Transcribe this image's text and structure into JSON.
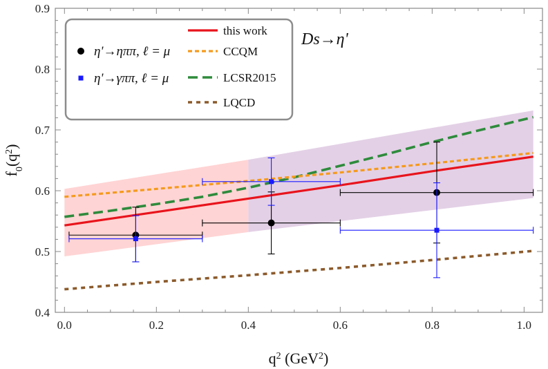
{
  "chart_data": {
    "type": "line",
    "title": "",
    "xlabel": "q",
    "xlabel_sup": "2",
    "xlabel_unit_open": " (GeV",
    "xlabel_unit_sup": "2",
    "xlabel_unit_close": ")",
    "ylabel": "f",
    "ylabel_sub": "0",
    "ylabel_arg_open": "(q",
    "ylabel_arg_sup": "2",
    "ylabel_arg_close": ")",
    "xlim": [
      -0.02,
      1.04
    ],
    "ylim": [
      0.4,
      0.9
    ],
    "xticks": [
      0.0,
      0.2,
      0.4,
      0.6,
      0.8,
      1.0
    ],
    "xtick_labels": [
      "0.0",
      "0.2",
      "0.4",
      "0.6",
      "0.8",
      "1.0"
    ],
    "yticks": [
      0.4,
      0.5,
      0.6,
      0.7,
      0.8,
      0.9
    ],
    "ytick_labels": [
      "0.4",
      "0.5",
      "0.6",
      "0.7",
      "0.8",
      "0.9"
    ],
    "annotation": "Ds→η'",
    "legend_placement": "top-left",
    "bands": [
      {
        "color": "#ffcccc",
        "opacity": 0.85,
        "x": [
          0.0,
          0.4
        ],
        "upper": [
          0.603,
          0.651
        ],
        "lower": [
          0.492,
          0.532
        ]
      },
      {
        "color": "#dcc4e0",
        "opacity": 0.8,
        "x": [
          0.4,
          1.02
        ],
        "upper": [
          0.651,
          0.732
        ],
        "lower": [
          0.532,
          0.588
        ]
      }
    ],
    "series": [
      {
        "name": "this work",
        "color": "#e8141c",
        "dash": "",
        "width": 3.2,
        "x": [
          0.0,
          0.2,
          0.4,
          0.6,
          0.8,
          1.02
        ],
        "y": [
          0.543,
          0.565,
          0.587,
          0.609,
          0.632,
          0.656
        ]
      },
      {
        "name": "CCQM",
        "color": "#f59a1e",
        "dash": "6,4",
        "width": 3.2,
        "x": [
          0.0,
          0.2,
          0.4,
          0.6,
          0.8,
          1.02
        ],
        "y": [
          0.59,
          0.603,
          0.616,
          0.63,
          0.645,
          0.662
        ]
      },
      {
        "name": "LCSR2015",
        "color": "#2e8b3c",
        "dash": "14,7",
        "width": 3.6,
        "x": [
          0.0,
          0.1,
          0.2,
          0.3,
          0.4,
          0.5,
          0.6,
          0.7,
          0.8,
          0.9,
          1.02
        ],
        "y": [
          0.557,
          0.567,
          0.578,
          0.59,
          0.605,
          0.622,
          0.641,
          0.66,
          0.68,
          0.699,
          0.721
        ]
      },
      {
        "name": "LQCD",
        "color": "#8b5a2b",
        "dash": "6,6",
        "width": 3.6,
        "x": [
          0.0,
          0.2,
          0.4,
          0.6,
          0.8,
          1.02
        ],
        "y": [
          0.438,
          0.45,
          0.461,
          0.473,
          0.486,
          0.501
        ]
      }
    ],
    "points": [
      {
        "name": "η'→ηππ, ℓ = μ",
        "marker": "circle",
        "color": "#000000",
        "data": [
          {
            "x": 0.155,
            "y": 0.527,
            "xlo": 0.01,
            "xhi": 0.3,
            "ylo": 0.483,
            "yhi": 0.573
          },
          {
            "x": 0.45,
            "y": 0.547,
            "xlo": 0.3,
            "xhi": 0.6,
            "ylo": 0.496,
            "yhi": 0.598
          },
          {
            "x": 0.81,
            "y": 0.597,
            "xlo": 0.6,
            "xhi": 1.02,
            "ylo": 0.514,
            "yhi": 0.68
          }
        ]
      },
      {
        "name": "η'→γππ, ℓ = μ",
        "marker": "square",
        "color": "#1a1aff",
        "data": [
          {
            "x": 0.155,
            "y": 0.521,
            "xlo": 0.01,
            "xhi": 0.3,
            "ylo": 0.483,
            "yhi": 0.559
          },
          {
            "x": 0.45,
            "y": 0.615,
            "xlo": 0.3,
            "xhi": 0.6,
            "ylo": 0.576,
            "yhi": 0.654
          },
          {
            "x": 0.81,
            "y": 0.535,
            "xlo": 0.6,
            "xhi": 1.02,
            "ylo": 0.457,
            "yhi": 0.613
          }
        ]
      }
    ]
  }
}
